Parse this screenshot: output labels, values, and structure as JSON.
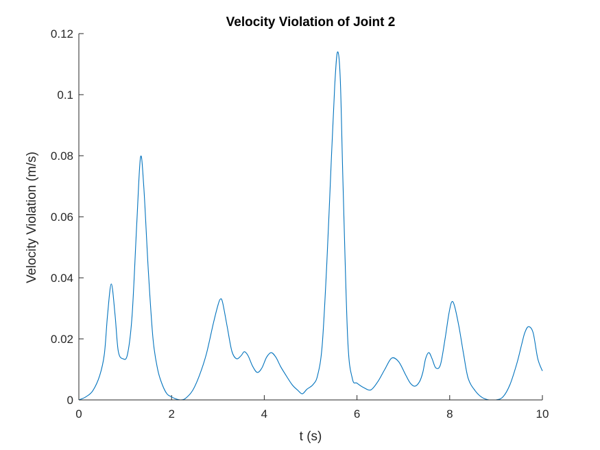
{
  "chart_data": {
    "type": "line",
    "title": "Velocity Violation of Joint 2",
    "xlabel": "t (s)",
    "ylabel": "Velocity Violation (m/s)",
    "xlim": [
      0,
      10
    ],
    "ylim": [
      0,
      0.12
    ],
    "xticks": [
      0,
      2,
      4,
      6,
      8,
      10
    ],
    "yticks": [
      0,
      0.02,
      0.04,
      0.06,
      0.08,
      0.1,
      0.12
    ],
    "xtick_labels": [
      "0",
      "2",
      "4",
      "6",
      "8",
      "10"
    ],
    "ytick_labels": [
      "0",
      "0.02",
      "0.04",
      "0.06",
      "0.08",
      "0.1",
      "0.12"
    ],
    "grid": false,
    "legend": false,
    "line_color": "#0072BD",
    "series": [
      {
        "x": [
          0,
          0.15,
          0.3,
          0.45,
          0.55,
          0.62,
          0.7,
          0.78,
          0.85,
          0.95,
          1.05,
          1.15,
          1.25,
          1.33,
          1.4,
          1.5,
          1.6,
          1.7,
          1.8,
          1.9,
          2.0,
          2.1,
          2.2,
          2.3,
          2.45,
          2.6,
          2.75,
          2.9,
          3.0,
          3.05,
          3.1,
          3.2,
          3.3,
          3.4,
          3.5,
          3.57,
          3.65,
          3.75,
          3.85,
          3.95,
          4.05,
          4.15,
          4.25,
          4.35,
          4.45,
          4.6,
          4.72,
          4.82,
          4.92,
          5.05,
          5.15,
          5.25,
          5.35,
          5.45,
          5.52,
          5.58,
          5.64,
          5.7,
          5.8,
          5.9,
          6.0,
          6.15,
          6.3,
          6.45,
          6.6,
          6.75,
          6.9,
          7.05,
          7.15,
          7.25,
          7.35,
          7.42,
          7.48,
          7.55,
          7.62,
          7.7,
          7.8,
          7.9,
          7.98,
          8.04,
          8.1,
          8.2,
          8.3,
          8.4,
          8.55,
          8.7,
          8.85,
          9.0,
          9.15,
          9.3,
          9.45,
          9.55,
          9.62,
          9.7,
          9.8,
          9.9,
          10.0
        ],
        "y": [
          0.0,
          0.001,
          0.003,
          0.008,
          0.015,
          0.028,
          0.038,
          0.028,
          0.016,
          0.0135,
          0.015,
          0.028,
          0.058,
          0.0795,
          0.07,
          0.042,
          0.02,
          0.01,
          0.005,
          0.002,
          0.001,
          0.0003,
          0.0,
          0.0005,
          0.003,
          0.008,
          0.015,
          0.025,
          0.031,
          0.033,
          0.032,
          0.024,
          0.016,
          0.0135,
          0.0145,
          0.0158,
          0.0145,
          0.011,
          0.009,
          0.0105,
          0.014,
          0.0155,
          0.014,
          0.011,
          0.0085,
          0.005,
          0.0032,
          0.002,
          0.0035,
          0.005,
          0.008,
          0.018,
          0.045,
          0.08,
          0.103,
          0.114,
          0.105,
          0.07,
          0.02,
          0.007,
          0.0055,
          0.004,
          0.0033,
          0.006,
          0.01,
          0.0137,
          0.0125,
          0.0082,
          0.0055,
          0.0045,
          0.006,
          0.009,
          0.0135,
          0.0155,
          0.0135,
          0.0105,
          0.0115,
          0.02,
          0.028,
          0.032,
          0.031,
          0.024,
          0.015,
          0.007,
          0.003,
          0.0008,
          0.0,
          0.0,
          0.001,
          0.005,
          0.012,
          0.018,
          0.022,
          0.024,
          0.022,
          0.0135,
          0.0095
        ]
      }
    ]
  }
}
